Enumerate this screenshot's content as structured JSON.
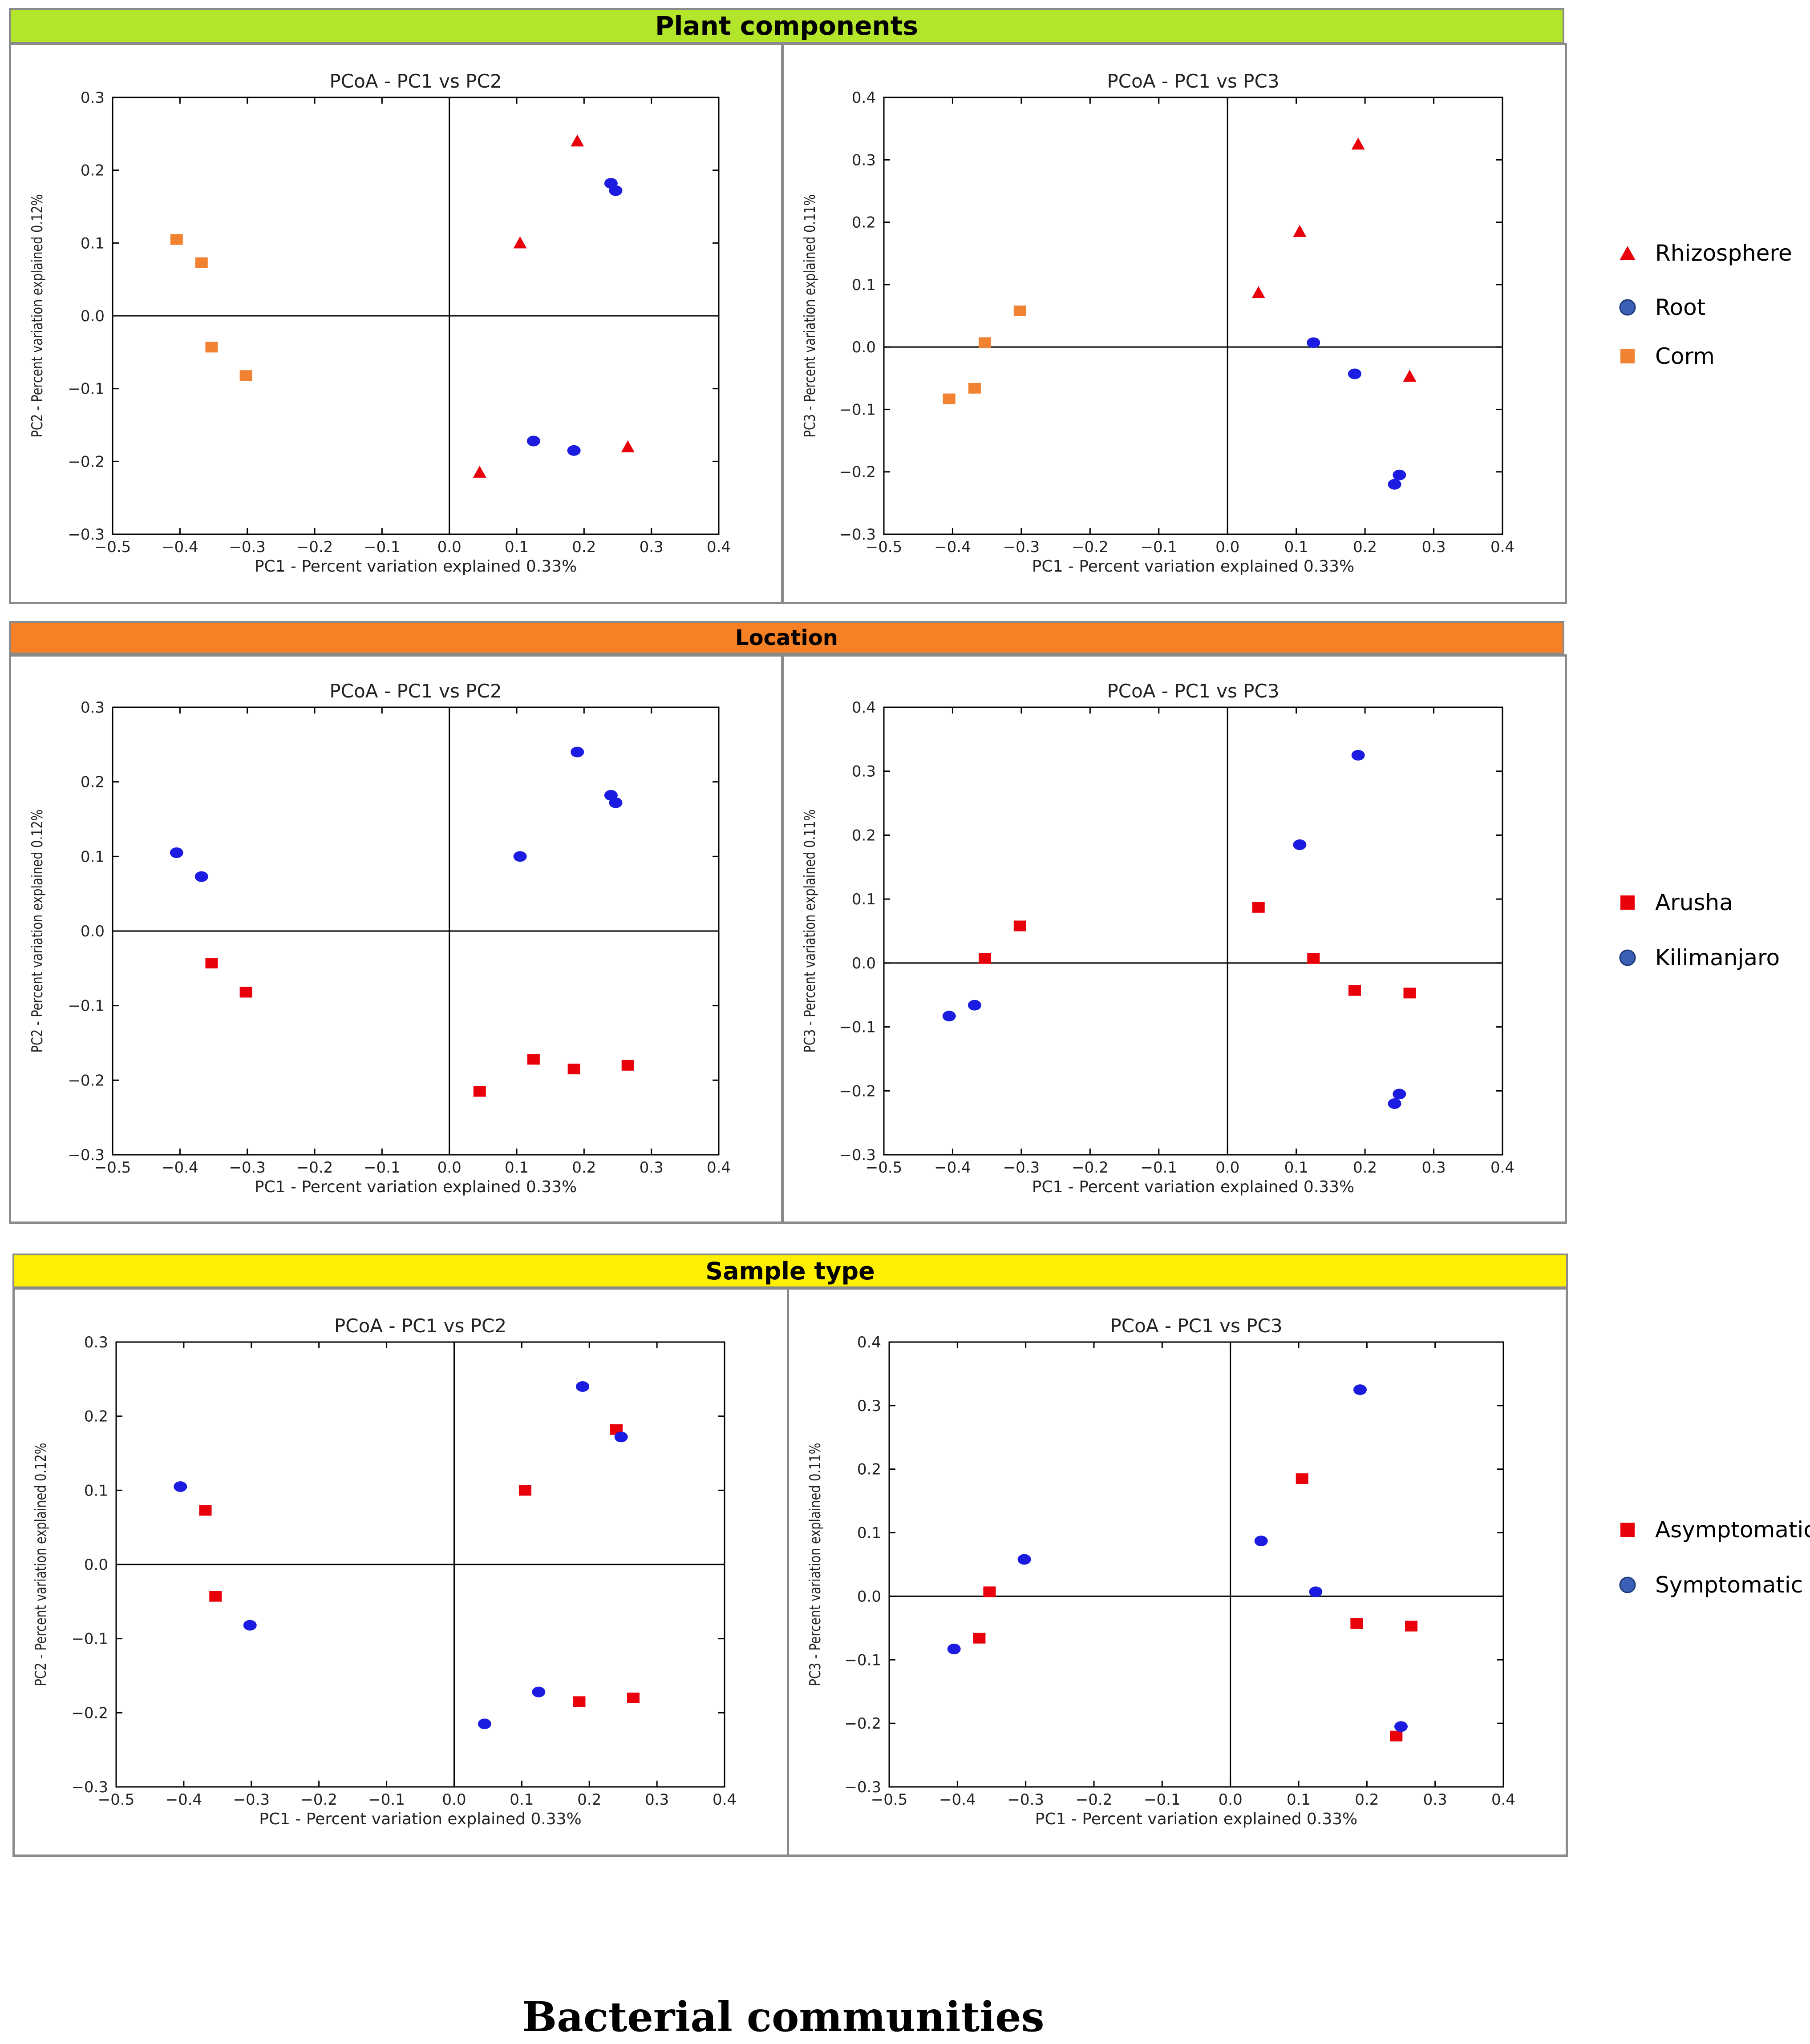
{
  "groups": {
    "plant": {
      "title": "Plant components",
      "color": "#b3e52a",
      "legend": [
        {
          "label": "Rhizosphere",
          "shape": "triangle",
          "color": "#e8000b"
        },
        {
          "label": "Root",
          "shape": "circle",
          "color": "#3a5fb5"
        },
        {
          "label": "Corm",
          "shape": "square",
          "color": "#f08232"
        }
      ]
    },
    "location": {
      "title": "Location",
      "color": "#f58025",
      "legend": [
        {
          "label": "Arusha",
          "shape": "square",
          "color": "#e8000b"
        },
        {
          "label": "Kilimanjaro",
          "shape": "circle",
          "color": "#3a5fb5"
        }
      ]
    },
    "sample": {
      "title": "Sample type",
      "color": "#ffef00",
      "legend": [
        {
          "label": "Asymptomatic",
          "shape": "square",
          "color": "#e8000b"
        },
        {
          "label": "Symptomatic",
          "shape": "circle",
          "color": "#3a5fb5"
        }
      ]
    }
  },
  "footer": {
    "title": "Bacterial communities"
  },
  "chart_data": [
    {
      "id": "plant-pc12",
      "type": "scatter",
      "title": "PCoA - PC1 vs PC2",
      "xlabel": "PC1 - Percent variation explained 0.33%",
      "ylabel": "PC2 - Percent variation explained 0.12%",
      "xlim": [
        -0.5,
        0.4
      ],
      "ylim": [
        -0.3,
        0.3
      ],
      "xticks": [
        "−0.5",
        "−0.4",
        "−0.3",
        "−0.2",
        "−0.1",
        "0.0",
        "0.1",
        "0.2",
        "0.3",
        "0.4"
      ],
      "yticks": [
        "−0.3",
        "−0.2",
        "−0.1",
        "0.0",
        "0.1",
        "0.2",
        "0.3"
      ],
      "series": [
        {
          "name": "Rhizosphere",
          "shape": "triangle",
          "color": "#e8000b",
          "points": [
            [
              0.19,
              0.24
            ],
            [
              0.105,
              0.1
            ],
            [
              0.045,
              -0.215
            ],
            [
              0.265,
              -0.18
            ]
          ]
        },
        {
          "name": "Root",
          "shape": "circle",
          "color": "#1c1ce0",
          "points": [
            [
              0.24,
              0.182
            ],
            [
              0.247,
              0.172
            ],
            [
              0.125,
              -0.172
            ],
            [
              0.185,
              -0.185
            ]
          ]
        },
        {
          "name": "Corm",
          "shape": "square",
          "color": "#f08232",
          "points": [
            [
              -0.405,
              0.105
            ],
            [
              -0.368,
              0.073
            ],
            [
              -0.353,
              -0.043
            ],
            [
              -0.302,
              -0.082
            ]
          ]
        }
      ]
    },
    {
      "id": "plant-pc13",
      "type": "scatter",
      "title": "PCoA - PC1 vs PC3",
      "xlabel": "PC1 - Percent variation explained 0.33%",
      "ylabel": "PC3 - Percent variation explained 0.11%",
      "xlim": [
        -0.5,
        0.4
      ],
      "ylim": [
        -0.3,
        0.4
      ],
      "xticks": [
        "−0.5",
        "−0.4",
        "−0.3",
        "−0.2",
        "−0.1",
        "0.0",
        "0.1",
        "0.2",
        "0.3",
        "0.4"
      ],
      "yticks": [
        "−0.3",
        "−0.2",
        "−0.1",
        "0.0",
        "0.1",
        "0.2",
        "0.3",
        "0.4"
      ],
      "series": [
        {
          "name": "Rhizosphere",
          "shape": "triangle",
          "color": "#e8000b",
          "points": [
            [
              0.19,
              0.325
            ],
            [
              0.105,
              0.185
            ],
            [
              0.045,
              0.087
            ],
            [
              0.265,
              -0.047
            ]
          ]
        },
        {
          "name": "Root",
          "shape": "circle",
          "color": "#1c1ce0",
          "points": [
            [
              0.125,
              0.007
            ],
            [
              0.185,
              -0.043
            ],
            [
              0.25,
              -0.205
            ],
            [
              0.243,
              -0.22
            ]
          ]
        },
        {
          "name": "Corm",
          "shape": "square",
          "color": "#f08232",
          "points": [
            [
              -0.302,
              0.058
            ],
            [
              -0.353,
              0.007
            ],
            [
              -0.368,
              -0.066
            ],
            [
              -0.405,
              -0.083
            ]
          ]
        }
      ]
    },
    {
      "id": "location-pc12",
      "type": "scatter",
      "title": "PCoA - PC1 vs PC2",
      "xlabel": "PC1 - Percent variation explained 0.33%",
      "ylabel": "PC2 - Percent variation explained 0.12%",
      "xlim": [
        -0.5,
        0.4
      ],
      "ylim": [
        -0.3,
        0.3
      ],
      "xticks": [
        "−0.5",
        "−0.4",
        "−0.3",
        "−0.2",
        "−0.1",
        "0.0",
        "0.1",
        "0.2",
        "0.3",
        "0.4"
      ],
      "yticks": [
        "−0.3",
        "−0.2",
        "−0.1",
        "0.0",
        "0.1",
        "0.2",
        "0.3"
      ],
      "series": [
        {
          "name": "Arusha",
          "shape": "square",
          "color": "#e8000b",
          "points": [
            [
              -0.353,
              -0.043
            ],
            [
              -0.302,
              -0.082
            ],
            [
              0.045,
              -0.215
            ],
            [
              0.125,
              -0.172
            ],
            [
              0.185,
              -0.185
            ],
            [
              0.265,
              -0.18
            ]
          ]
        },
        {
          "name": "Kilimanjaro",
          "shape": "circle",
          "color": "#1c1ce0",
          "points": [
            [
              -0.405,
              0.105
            ],
            [
              -0.368,
              0.073
            ],
            [
              0.19,
              0.24
            ],
            [
              0.24,
              0.182
            ],
            [
              0.247,
              0.172
            ],
            [
              0.105,
              0.1
            ]
          ]
        }
      ]
    },
    {
      "id": "location-pc13",
      "type": "scatter",
      "title": "PCoA - PC1 vs PC3",
      "xlabel": "PC1 - Percent variation explained 0.33%",
      "ylabel": "PC3 - Percent variation explained 0.11%",
      "xlim": [
        -0.5,
        0.4
      ],
      "ylim": [
        -0.3,
        0.4
      ],
      "xticks": [
        "−0.5",
        "−0.4",
        "−0.3",
        "−0.2",
        "−0.1",
        "0.0",
        "0.1",
        "0.2",
        "0.3",
        "0.4"
      ],
      "yticks": [
        "−0.3",
        "−0.2",
        "−0.1",
        "0.0",
        "0.1",
        "0.2",
        "0.3",
        "0.4"
      ],
      "series": [
        {
          "name": "Arusha",
          "shape": "square",
          "color": "#e8000b",
          "points": [
            [
              -0.302,
              0.058
            ],
            [
              -0.353,
              0.007
            ],
            [
              0.045,
              0.087
            ],
            [
              0.125,
              0.007
            ],
            [
              0.185,
              -0.043
            ],
            [
              0.265,
              -0.047
            ]
          ]
        },
        {
          "name": "Kilimanjaro",
          "shape": "circle",
          "color": "#1c1ce0",
          "points": [
            [
              0.19,
              0.325
            ],
            [
              0.105,
              0.185
            ],
            [
              -0.368,
              -0.066
            ],
            [
              -0.405,
              -0.083
            ],
            [
              0.25,
              -0.205
            ],
            [
              0.243,
              -0.22
            ]
          ]
        }
      ]
    },
    {
      "id": "sample-pc12",
      "type": "scatter",
      "title": "PCoA - PC1 vs PC2",
      "xlabel": "PC1 - Percent variation explained 0.33%",
      "ylabel": "PC2 - Percent variation explained 0.12%",
      "xlim": [
        -0.5,
        0.4
      ],
      "ylim": [
        -0.3,
        0.3
      ],
      "xticks": [
        "−0.5",
        "−0.4",
        "−0.3",
        "−0.2",
        "−0.1",
        "0.0",
        "0.1",
        "0.2",
        "0.3",
        "0.4"
      ],
      "yticks": [
        "−0.3",
        "−0.2",
        "−0.1",
        "0.0",
        "0.1",
        "0.2",
        "0.3"
      ],
      "series": [
        {
          "name": "Asymptomatic",
          "shape": "square",
          "color": "#e8000b",
          "points": [
            [
              -0.368,
              0.073
            ],
            [
              -0.353,
              -0.043
            ],
            [
              0.24,
              0.182
            ],
            [
              0.105,
              0.1
            ],
            [
              0.185,
              -0.185
            ],
            [
              0.265,
              -0.18
            ]
          ]
        },
        {
          "name": "Symptomatic",
          "shape": "circle",
          "color": "#1c1ce0",
          "points": [
            [
              -0.405,
              0.105
            ],
            [
              -0.302,
              -0.082
            ],
            [
              0.19,
              0.24
            ],
            [
              0.247,
              0.172
            ],
            [
              0.045,
              -0.215
            ],
            [
              0.125,
              -0.172
            ]
          ]
        }
      ]
    },
    {
      "id": "sample-pc13",
      "type": "scatter",
      "title": "PCoA - PC1 vs PC3",
      "xlabel": "PC1 - Percent variation explained 0.33%",
      "ylabel": "PC3 - Percent variation explained 0.11%",
      "xlim": [
        -0.5,
        0.4
      ],
      "ylim": [
        -0.3,
        0.4
      ],
      "xticks": [
        "−0.5",
        "−0.4",
        "−0.3",
        "−0.2",
        "−0.1",
        "0.0",
        "0.1",
        "0.2",
        "0.3",
        "0.4"
      ],
      "yticks": [
        "−0.3",
        "−0.2",
        "−0.1",
        "0.0",
        "0.1",
        "0.2",
        "0.3",
        "0.4"
      ],
      "series": [
        {
          "name": "Asymptomatic",
          "shape": "square",
          "color": "#e8000b",
          "points": [
            [
              0.105,
              0.185
            ],
            [
              -0.353,
              0.007
            ],
            [
              -0.368,
              -0.066
            ],
            [
              0.185,
              -0.043
            ],
            [
              0.265,
              -0.047
            ],
            [
              0.243,
              -0.22
            ]
          ]
        },
        {
          "name": "Symptomatic",
          "shape": "circle",
          "color": "#1c1ce0",
          "points": [
            [
              0.19,
              0.325
            ],
            [
              -0.302,
              0.058
            ],
            [
              0.045,
              0.087
            ],
            [
              0.125,
              0.007
            ],
            [
              -0.405,
              -0.083
            ],
            [
              0.25,
              -0.205
            ]
          ]
        }
      ]
    }
  ]
}
